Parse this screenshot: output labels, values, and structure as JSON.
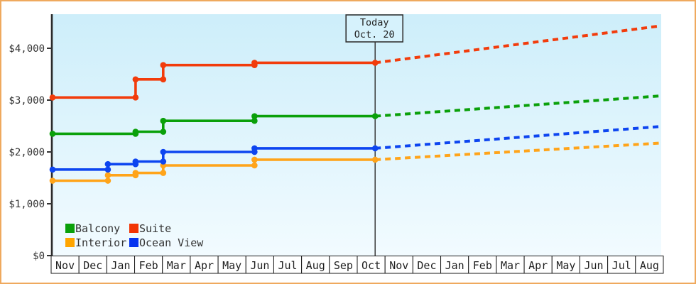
{
  "page": {
    "border_color": "#efa95e",
    "background": "#ffffff",
    "plot_bg_top": "#cdeefa",
    "plot_bg_bottom": "#f2fbff",
    "axis_color": "#2b2b2b",
    "text_color": "#333333"
  },
  "today_marker": {
    "line1": "Today",
    "line2": "Oct. 20"
  },
  "legend": [
    {
      "label": "Balcony",
      "color": "#0aa00a"
    },
    {
      "label": "Suite",
      "color": "#f23505"
    },
    {
      "label": "Interior",
      "color": "#ffa500"
    },
    {
      "label": "Ocean View",
      "color": "#0534f0"
    }
  ],
  "chart_data": {
    "type": "line",
    "title": "",
    "xlabel": "",
    "ylabel": "",
    "grid": false,
    "legend_position": "inside-bottom-left",
    "y_axis": {
      "range": [
        0,
        4500
      ],
      "tick_interval": 1000,
      "ticks": [
        {
          "label": "$4,000",
          "value": 4000
        },
        {
          "label": "$3,000",
          "value": 3000
        },
        {
          "label": "$2,000",
          "value": 2000
        },
        {
          "label": "$1,000",
          "value": 1000
        },
        {
          "label": "$0",
          "value": 0
        }
      ]
    },
    "x_axis": {
      "unit": "month",
      "labels": [
        "Nov",
        "Dec",
        "Jan",
        "Feb",
        "Mar",
        "Apr",
        "May",
        "Jun",
        "Jul",
        "Aug",
        "Sep",
        "Oct",
        "Nov",
        "Dec",
        "Jan",
        "Feb",
        "Mar",
        "Apr",
        "May",
        "Jun",
        "Jul",
        "Aug"
      ]
    },
    "today": {
      "label": "Today",
      "date": "Oct. 20",
      "month_index": 11.66
    },
    "series": [
      {
        "name": "Interior",
        "color": "#ffa41a",
        "solid_points": [
          [
            0,
            1445
          ],
          [
            2,
            1445
          ],
          [
            2,
            1550
          ],
          [
            3,
            1550
          ],
          [
            3,
            1595
          ],
          [
            4,
            1595
          ],
          [
            4,
            1740
          ],
          [
            7.3,
            1740
          ],
          [
            7.3,
            1850
          ],
          [
            11.66,
            1850
          ]
        ],
        "projection_end": [
          22,
          2170
        ]
      },
      {
        "name": "Ocean View",
        "color": "#0d45f0",
        "solid_points": [
          [
            0,
            1660
          ],
          [
            2,
            1660
          ],
          [
            2,
            1765
          ],
          [
            3,
            1765
          ],
          [
            3,
            1815
          ],
          [
            4,
            1815
          ],
          [
            4,
            2000
          ],
          [
            7.3,
            2000
          ],
          [
            7.3,
            2070
          ],
          [
            11.66,
            2070
          ]
        ],
        "projection_end": [
          22,
          2490
        ]
      },
      {
        "name": "Balcony",
        "color": "#0aa00a",
        "solid_points": [
          [
            0,
            2350
          ],
          [
            3,
            2350
          ],
          [
            3,
            2390
          ],
          [
            4,
            2390
          ],
          [
            4,
            2600
          ],
          [
            7.3,
            2600
          ],
          [
            7.3,
            2690
          ],
          [
            11.66,
            2690
          ]
        ],
        "projection_end": [
          22,
          3080
        ]
      },
      {
        "name": "Suite",
        "color": "#f23c0c",
        "solid_points": [
          [
            0,
            3050
          ],
          [
            3,
            3050
          ],
          [
            3,
            3400
          ],
          [
            4,
            3400
          ],
          [
            4,
            3675
          ],
          [
            7.3,
            3675
          ],
          [
            7.3,
            3720
          ],
          [
            11.66,
            3720
          ]
        ],
        "projection_end": [
          22,
          4430
        ]
      }
    ]
  }
}
